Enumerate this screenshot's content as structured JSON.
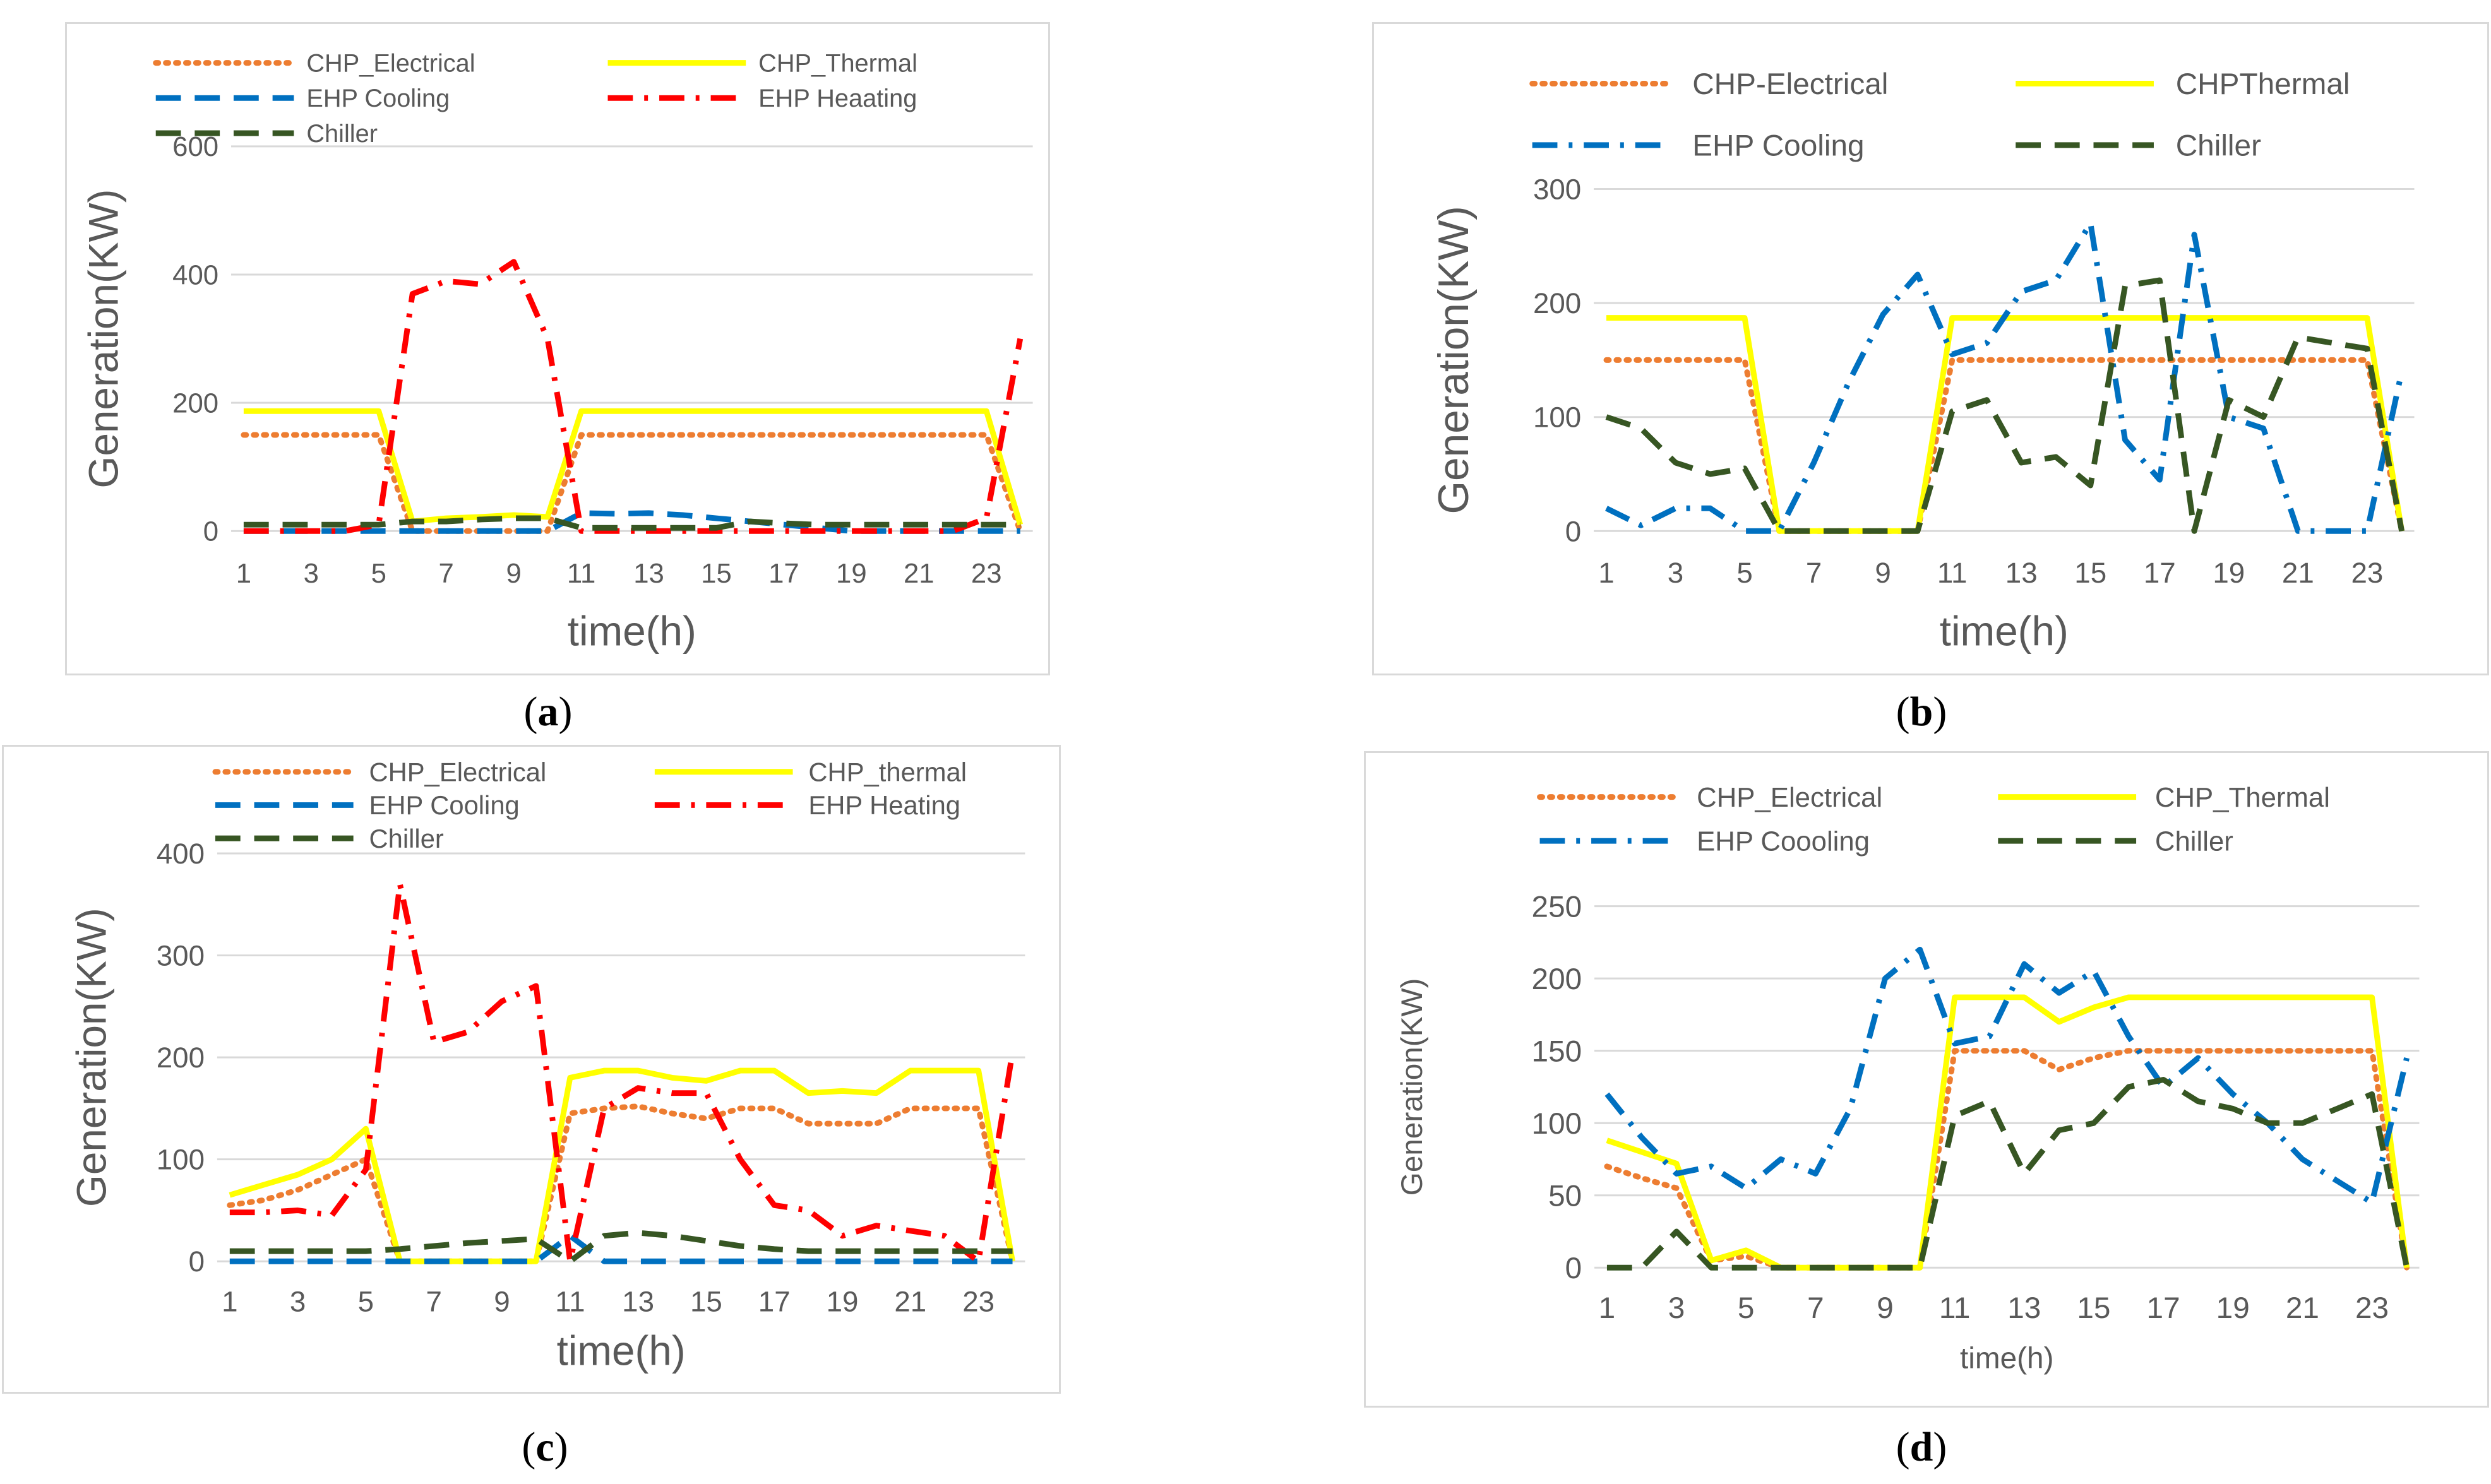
{
  "figure": {
    "captions": [
      "a",
      "b",
      "c",
      "d"
    ]
  },
  "chart_data": [
    {
      "id": "a",
      "type": "line",
      "title": "",
      "xlabel": "time(h)",
      "ylabel": "Generation(KW)",
      "ylim": [
        0,
        600
      ],
      "yticks": [
        0,
        200,
        400,
        600
      ],
      "xticks": [
        1,
        3,
        5,
        7,
        9,
        11,
        13,
        15,
        17,
        19,
        21,
        23
      ],
      "x": [
        1,
        2,
        3,
        4,
        5,
        6,
        7,
        8,
        9,
        10,
        11,
        12,
        13,
        14,
        15,
        16,
        17,
        18,
        19,
        20,
        21,
        22,
        23,
        24
      ],
      "legend_layout": "two-column",
      "series": [
        {
          "name": "CHP_Electrical",
          "style": "dotted",
          "color": "#ED7D31",
          "values": [
            150,
            150,
            150,
            150,
            150,
            0,
            0,
            0,
            0,
            0,
            150,
            150,
            150,
            150,
            150,
            150,
            150,
            150,
            150,
            150,
            150,
            150,
            150,
            0
          ]
        },
        {
          "name": "CHP_Thermal",
          "style": "solid",
          "color": "#FFFF00",
          "values": [
            187,
            187,
            187,
            187,
            187,
            15,
            20,
            22,
            25,
            22,
            187,
            187,
            187,
            187,
            187,
            187,
            187,
            187,
            187,
            187,
            187,
            187,
            187,
            10
          ]
        },
        {
          "name": "EHP Cooling",
          "style": "dash",
          "color": "#0070C0",
          "values": [
            0,
            0,
            0,
            0,
            0,
            0,
            0,
            0,
            0,
            0,
            28,
            27,
            28,
            25,
            20,
            15,
            10,
            5,
            0,
            0,
            0,
            0,
            0,
            0
          ]
        },
        {
          "name": "EHP Heaating",
          "style": "dashdot",
          "color": "#FF0000",
          "values": [
            0,
            0,
            0,
            0,
            10,
            370,
            390,
            385,
            420,
            300,
            0,
            0,
            0,
            0,
            0,
            0,
            0,
            0,
            0,
            0,
            0,
            0,
            20,
            300
          ]
        },
        {
          "name": "Chiller",
          "style": "dash",
          "color": "#375623",
          "values": [
            10,
            10,
            10,
            10,
            10,
            15,
            15,
            18,
            20,
            20,
            5,
            5,
            5,
            5,
            5,
            15,
            12,
            10,
            10,
            10,
            10,
            10,
            10,
            10
          ]
        }
      ]
    },
    {
      "id": "b",
      "type": "line",
      "title": "",
      "xlabel": "time(h)",
      "ylabel": "Generation(KW)",
      "ylim": [
        0,
        300
      ],
      "yticks": [
        0,
        100,
        200,
        300
      ],
      "xticks": [
        1,
        3,
        5,
        7,
        9,
        11,
        13,
        15,
        17,
        19,
        21,
        23
      ],
      "x": [
        1,
        2,
        3,
        4,
        5,
        6,
        7,
        8,
        9,
        10,
        11,
        12,
        13,
        14,
        15,
        16,
        17,
        18,
        19,
        20,
        21,
        22,
        23,
        24
      ],
      "legend_layout": "two-column",
      "series": [
        {
          "name": "CHP-Electrical",
          "style": "dotted",
          "color": "#ED7D31",
          "values": [
            150,
            150,
            150,
            150,
            150,
            0,
            0,
            0,
            0,
            0,
            150,
            150,
            150,
            150,
            150,
            150,
            150,
            150,
            150,
            150,
            150,
            150,
            150,
            0
          ]
        },
        {
          "name": "CHPThermal",
          "style": "solid",
          "color": "#FFFF00",
          "values": [
            187,
            187,
            187,
            187,
            187,
            0,
            0,
            0,
            0,
            0,
            187,
            187,
            187,
            187,
            187,
            187,
            187,
            187,
            187,
            187,
            187,
            187,
            187,
            0
          ]
        },
        {
          "name": "EHP Cooling",
          "style": "dashdot",
          "color": "#0070C0",
          "values": [
            20,
            5,
            20,
            20,
            0,
            0,
            60,
            130,
            190,
            225,
            155,
            165,
            210,
            220,
            270,
            80,
            45,
            260,
            100,
            90,
            0,
            0,
            0,
            140
          ]
        },
        {
          "name": "Chiller",
          "style": "dash",
          "color": "#375623",
          "values": [
            100,
            90,
            60,
            50,
            55,
            0,
            0,
            0,
            0,
            0,
            105,
            115,
            60,
            65,
            40,
            215,
            220,
            0,
            115,
            100,
            170,
            165,
            160,
            0
          ]
        }
      ]
    },
    {
      "id": "c",
      "type": "line",
      "title": "",
      "xlabel": "time(h)",
      "ylabel": "Generation(KW)",
      "ylim": [
        0,
        400
      ],
      "yticks": [
        0,
        100,
        200,
        300,
        400
      ],
      "xticks": [
        1,
        3,
        5,
        7,
        9,
        11,
        13,
        15,
        17,
        19,
        21,
        23
      ],
      "x": [
        1,
        2,
        3,
        4,
        5,
        6,
        7,
        8,
        9,
        10,
        11,
        12,
        13,
        14,
        15,
        16,
        17,
        18,
        19,
        20,
        21,
        22,
        23,
        24
      ],
      "legend_layout": "two-column",
      "series": [
        {
          "name": "CHP_Electrical",
          "style": "dotted",
          "color": "#ED7D31",
          "values": [
            55,
            60,
            70,
            85,
            100,
            0,
            0,
            0,
            0,
            0,
            145,
            150,
            152,
            145,
            140,
            150,
            150,
            135,
            135,
            135,
            150,
            150,
            150,
            0
          ]
        },
        {
          "name": "CHP_thermal",
          "style": "solid",
          "color": "#FFFF00",
          "values": [
            65,
            75,
            85,
            100,
            130,
            0,
            0,
            0,
            0,
            0,
            180,
            187,
            187,
            180,
            177,
            187,
            187,
            165,
            167,
            165,
            187,
            187,
            187,
            0
          ]
        },
        {
          "name": "EHP Cooling",
          "style": "dash",
          "color": "#0070C0",
          "values": [
            0,
            0,
            0,
            0,
            0,
            0,
            0,
            0,
            0,
            0,
            25,
            0,
            0,
            0,
            0,
            0,
            0,
            0,
            0,
            0,
            0,
            0,
            0,
            0
          ]
        },
        {
          "name": "EHP Heating",
          "style": "dashdot",
          "color": "#FF0000",
          "values": [
            48,
            48,
            50,
            45,
            90,
            370,
            215,
            225,
            255,
            270,
            0,
            150,
            170,
            165,
            165,
            100,
            55,
            50,
            25,
            35,
            30,
            25,
            0,
            205
          ]
        },
        {
          "name": "Chiller",
          "style": "dash",
          "color": "#375623",
          "values": [
            10,
            10,
            10,
            10,
            10,
            12,
            15,
            18,
            20,
            22,
            0,
            25,
            28,
            25,
            20,
            15,
            12,
            10,
            10,
            10,
            10,
            10,
            10,
            10
          ]
        }
      ]
    },
    {
      "id": "d",
      "type": "line",
      "title": "",
      "xlabel": "time(h)",
      "ylabel": "Generation(KW)",
      "ylim": [
        0,
        250
      ],
      "yticks": [
        0,
        50,
        100,
        150,
        200,
        250
      ],
      "xticks": [
        1,
        3,
        5,
        7,
        9,
        11,
        13,
        15,
        17,
        19,
        21,
        23
      ],
      "x": [
        1,
        2,
        3,
        4,
        5,
        6,
        7,
        8,
        9,
        10,
        11,
        12,
        13,
        14,
        15,
        16,
        17,
        18,
        19,
        20,
        21,
        22,
        23,
        24
      ],
      "legend_layout": "two-column",
      "series": [
        {
          "name": "CHP_Electrical",
          "style": "dotted",
          "color": "#ED7D31",
          "values": [
            70,
            62,
            55,
            5,
            8,
            0,
            0,
            0,
            0,
            0,
            150,
            150,
            150,
            137,
            145,
            150,
            150,
            150,
            150,
            150,
            150,
            150,
            150,
            0
          ]
        },
        {
          "name": "CHP_Thermal",
          "style": "solid",
          "color": "#FFFF00",
          "values": [
            88,
            80,
            72,
            5,
            12,
            0,
            0,
            0,
            0,
            0,
            187,
            187,
            187,
            170,
            180,
            187,
            187,
            187,
            187,
            187,
            187,
            187,
            187,
            0
          ]
        },
        {
          "name": "EHP Coooling",
          "style": "dashdot",
          "color": "#0070C0",
          "values": [
            120,
            90,
            65,
            70,
            55,
            75,
            65,
            110,
            200,
            220,
            155,
            160,
            210,
            190,
            205,
            160,
            125,
            145,
            120,
            100,
            75,
            60,
            45,
            145
          ]
        },
        {
          "name": "Chiller",
          "style": "dash",
          "color": "#375623",
          "values": [
            0,
            0,
            25,
            0,
            0,
            0,
            0,
            0,
            0,
            0,
            105,
            115,
            65,
            95,
            100,
            125,
            130,
            115,
            110,
            100,
            100,
            110,
            120,
            0
          ]
        }
      ]
    }
  ]
}
